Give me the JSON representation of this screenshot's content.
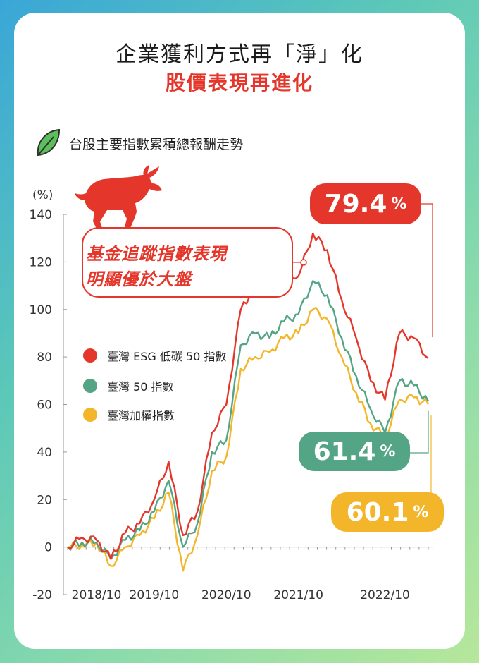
{
  "title_line1": "企業獲利方式再「淨」化",
  "title_line2": "股價表現再進化",
  "subtitle": "台股主要指數累積總報酬走勢",
  "icons": [
    "leaf-icon",
    "bull-icon"
  ],
  "colors": {
    "esg": "#e4362a",
    "tw50": "#54a585",
    "taiex": "#f3b62b",
    "accent": "#e4362a"
  },
  "annotation": {
    "line1": "基金追蹤指數表現",
    "line2": "明顯優於大盤"
  },
  "callouts": {
    "esg": {
      "value": "79.4",
      "unit": "%"
    },
    "tw50": {
      "value": "61.4",
      "unit": "%"
    },
    "taiex": {
      "value": "60.1",
      "unit": "%"
    }
  },
  "chart_data": {
    "type": "line",
    "ylabel": "(%)",
    "ylim": [
      -20,
      140
    ],
    "yticks": [
      "140",
      "120",
      "100",
      "80",
      "60",
      "40",
      "20",
      "0",
      "-20"
    ],
    "xticks": [
      "2018/10",
      "2019/10",
      "2020/10",
      "2021/10",
      "2022/10"
    ],
    "grid": false,
    "legend_position": "left-middle",
    "x": [
      "2018/04",
      "2018/07",
      "2018/10",
      "2019/01",
      "2019/04",
      "2019/07",
      "2019/10",
      "2020/01",
      "2020/03",
      "2020/04",
      "2020/07",
      "2020/10",
      "2020/12",
      "2021/01",
      "2021/04",
      "2021/07",
      "2021/10",
      "2021/12",
      "2022/01",
      "2022/04",
      "2022/07",
      "2022/09",
      "2022/10",
      "2022/12",
      "2023/01",
      "2023/03"
    ],
    "series": [
      {
        "name": "臺灣 ESG 低碳 50 指數",
        "values": [
          0,
          4,
          3,
          -5,
          6,
          10,
          20,
          36,
          5,
          15,
          48,
          60,
          100,
          110,
          105,
          115,
          114,
          132,
          125,
          104,
          88,
          70,
          62,
          90,
          88,
          79.4
        ]
      },
      {
        "name": "臺灣 50 指數",
        "values": [
          0,
          2,
          2,
          -5,
          3,
          7,
          15,
          28,
          0,
          10,
          40,
          45,
          85,
          90,
          88,
          95,
          98,
          112,
          106,
          88,
          72,
          58,
          48,
          70,
          68,
          61.4
        ]
      },
      {
        "name": "臺灣加權指數",
        "values": [
          0,
          1,
          2,
          -8,
          0,
          5,
          12,
          23,
          -10,
          5,
          32,
          38,
          75,
          80,
          82,
          88,
          90,
          100,
          96,
          80,
          65,
          52,
          46,
          62,
          63,
          60.1
        ]
      }
    ]
  }
}
